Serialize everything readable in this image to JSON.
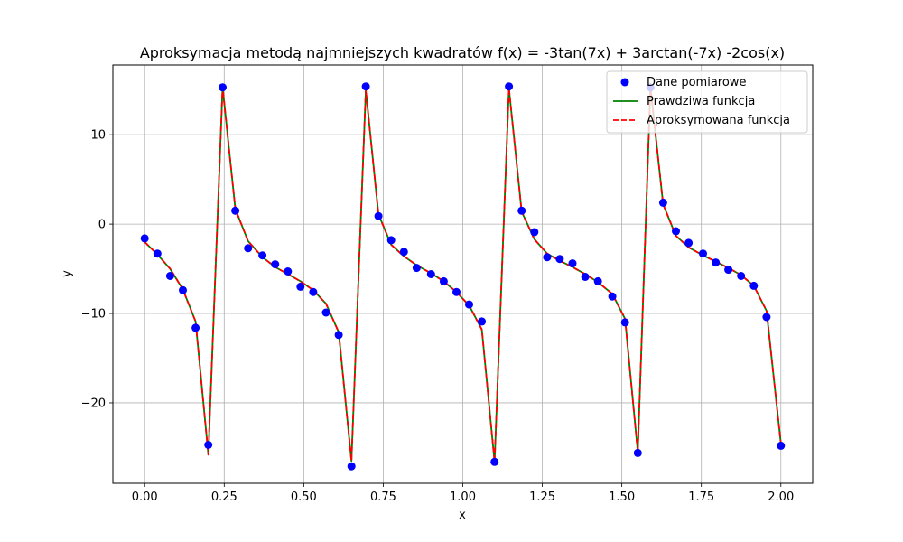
{
  "chart_data": {
    "type": "line",
    "title": "Aproksymacja metodą najmniejszych kwadratów f(x) =  -3tan(7x) + 3arctan(-7x) -2cos(x)",
    "xlabel": "x",
    "ylabel": "y",
    "xlim": [
      -0.1,
      2.1
    ],
    "ylim": [
      -29.0,
      17.8
    ],
    "xticks": [
      0.0,
      0.25,
      0.5,
      0.75,
      1.0,
      1.25,
      1.5,
      1.75,
      2.0
    ],
    "xtick_labels": [
      "0.00",
      "0.25",
      "0.50",
      "0.75",
      "1.00",
      "1.25",
      "1.50",
      "1.75",
      "2.00"
    ],
    "yticks": [
      -20,
      -10,
      0,
      10
    ],
    "ytick_labels": [
      "−20",
      "−10",
      "0",
      "10"
    ],
    "grid": true,
    "legend_position": "top-right",
    "colors": {
      "points": "#0000ff",
      "true_function": "#008000",
      "approximated_function": "#ff0000"
    },
    "series": [
      {
        "name": "Dane pomiarowe",
        "kind": "scatter",
        "x": [
          0.0,
          0.04,
          0.08,
          0.12,
          0.16,
          0.2,
          0.245,
          0.285,
          0.325,
          0.37,
          0.41,
          0.45,
          0.49,
          0.53,
          0.57,
          0.61,
          0.65,
          0.695,
          0.735,
          0.775,
          0.815,
          0.855,
          0.9,
          0.94,
          0.98,
          1.02,
          1.06,
          1.1,
          1.145,
          1.185,
          1.225,
          1.265,
          1.305,
          1.345,
          1.385,
          1.425,
          1.47,
          1.51,
          1.55,
          1.59,
          1.63,
          1.67,
          1.71,
          1.755,
          1.795,
          1.835,
          1.875,
          1.915,
          1.955,
          2.0
        ],
        "y": [
          -1.6,
          -3.3,
          -5.8,
          -7.4,
          -11.6,
          -24.7,
          15.3,
          1.5,
          -2.7,
          -3.5,
          -4.5,
          -5.3,
          -7.0,
          -7.6,
          -9.9,
          -12.4,
          -27.1,
          15.4,
          0.9,
          -1.8,
          -3.1,
          -4.9,
          -5.6,
          -6.4,
          -7.6,
          -9.0,
          -10.9,
          -26.6,
          15.4,
          1.5,
          -0.9,
          -3.7,
          -3.9,
          -4.4,
          -5.9,
          -6.4,
          -8.1,
          -11.0,
          -25.6,
          15.3,
          2.4,
          -0.8,
          -2.1,
          -3.3,
          -4.3,
          -5.1,
          -5.8,
          -6.9,
          -10.4,
          -24.8
        ]
      },
      {
        "name": "Prawdziwa funkcja",
        "kind": "line",
        "x": [
          0.0,
          0.04,
          0.08,
          0.12,
          0.16,
          0.2,
          0.245,
          0.285,
          0.325,
          0.37,
          0.41,
          0.45,
          0.49,
          0.53,
          0.57,
          0.61,
          0.65,
          0.695,
          0.735,
          0.775,
          0.815,
          0.855,
          0.9,
          0.94,
          0.98,
          1.02,
          1.06,
          1.1,
          1.145,
          1.185,
          1.225,
          1.265,
          1.305,
          1.345,
          1.385,
          1.425,
          1.47,
          1.51,
          1.55,
          1.59,
          1.63,
          1.67,
          1.71,
          1.755,
          1.795,
          1.835,
          1.875,
          1.915,
          1.955,
          2.0
        ],
        "y": [
          -2.0,
          -3.4,
          -5.0,
          -7.3,
          -10.9,
          -25.8,
          15.3,
          1.7,
          -1.9,
          -3.7,
          -4.8,
          -5.6,
          -6.4,
          -7.4,
          -8.9,
          -12.1,
          -26.5,
          15.0,
          1.1,
          -2.3,
          -3.6,
          -4.6,
          -5.5,
          -6.4,
          -7.6,
          -9.1,
          -11.8,
          -26.6,
          15.2,
          1.4,
          -1.7,
          -3.3,
          -4.1,
          -4.8,
          -5.6,
          -6.5,
          -7.8,
          -10.6,
          -25.5,
          15.3,
          2.2,
          -1.3,
          -2.6,
          -3.5,
          -4.2,
          -4.9,
          -5.7,
          -6.9,
          -9.7,
          -24.6
        ]
      },
      {
        "name": "Aproksymowana funkcja",
        "kind": "dashed-line",
        "x": [
          0.0,
          0.04,
          0.08,
          0.12,
          0.16,
          0.2,
          0.245,
          0.285,
          0.325,
          0.37,
          0.41,
          0.45,
          0.49,
          0.53,
          0.57,
          0.61,
          0.65,
          0.695,
          0.735,
          0.775,
          0.815,
          0.855,
          0.9,
          0.94,
          0.98,
          1.02,
          1.06,
          1.1,
          1.145,
          1.185,
          1.225,
          1.265,
          1.305,
          1.345,
          1.385,
          1.425,
          1.47,
          1.51,
          1.55,
          1.59,
          1.63,
          1.67,
          1.71,
          1.755,
          1.795,
          1.835,
          1.875,
          1.915,
          1.955,
          2.0
        ],
        "y": [
          -2.0,
          -3.4,
          -5.0,
          -7.3,
          -10.9,
          -25.8,
          15.3,
          1.7,
          -1.9,
          -3.7,
          -4.8,
          -5.6,
          -6.4,
          -7.4,
          -8.9,
          -12.1,
          -26.5,
          15.0,
          1.1,
          -2.3,
          -3.6,
          -4.6,
          -5.5,
          -6.4,
          -7.6,
          -9.1,
          -11.8,
          -26.6,
          15.2,
          1.4,
          -1.7,
          -3.3,
          -4.1,
          -4.8,
          -5.6,
          -6.5,
          -7.8,
          -10.6,
          -25.5,
          15.3,
          2.2,
          -1.3,
          -2.6,
          -3.5,
          -4.2,
          -4.9,
          -5.7,
          -6.9,
          -9.7,
          -24.6
        ]
      }
    ]
  }
}
